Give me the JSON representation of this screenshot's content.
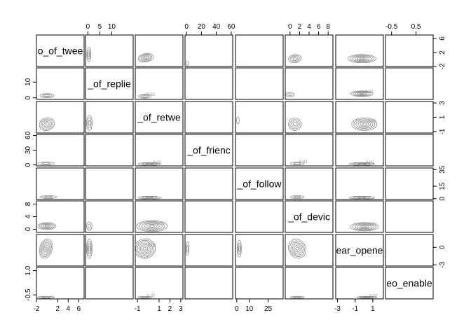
{
  "chart_data": {
    "type": "pairs-contour",
    "variables": [
      "o_of_twee",
      "_of_replie",
      "_of_retwe",
      "_of_frienc",
      "_of_follow",
      "_of_devic",
      "ear_opene",
      "eo_enable"
    ],
    "axes": {
      "bottom": {
        "0": {
          "ticks": [
            -2,
            2,
            4,
            6
          ],
          "labels": [
            "-2",
            "2",
            "4",
            "6"
          ],
          "range": [
            -2,
            7
          ]
        },
        "2": {
          "ticks": [
            -1,
            1,
            2,
            3
          ],
          "labels": [
            "-1",
            "1",
            "2",
            "3"
          ],
          "range": [
            -1.2,
            3.2
          ]
        },
        "4": {
          "ticks": [
            0,
            10,
            25
          ],
          "labels": [
            "0",
            "10",
            "25"
          ],
          "range": [
            -1,
            37
          ]
        },
        "6": {
          "ticks": [
            -3,
            -1,
            1
          ],
          "labels": [
            "-3",
            "-1",
            "1"
          ],
          "range": [
            -3.2,
            2.2
          ]
        }
      },
      "top": {
        "1": {
          "ticks": [
            0,
            5,
            10
          ],
          "labels": [
            "0",
            "5",
            "10"
          ],
          "range": [
            -1,
            19
          ]
        },
        "3": {
          "ticks": [
            0,
            20,
            40,
            60
          ],
          "labels": [
            "0",
            "20",
            "40",
            "60"
          ],
          "range": [
            -2,
            62
          ]
        },
        "5": {
          "ticks": [
            0,
            2,
            4,
            6,
            8
          ],
          "labels": [
            "0",
            "2",
            "4",
            "6",
            "8"
          ],
          "range": [
            -1,
            9
          ]
        },
        "7": {
          "ticks": [
            -0.5,
            0.5
          ],
          "labels": [
            "-0.5",
            "0.5"
          ],
          "range": [
            -0.75,
            1.2
          ]
        }
      },
      "left": {
        "1": {
          "ticks": [
            0,
            10
          ],
          "labels": [
            "0",
            "10"
          ],
          "range": [
            -1,
            19
          ]
        },
        "3": {
          "ticks": [
            0,
            30,
            60
          ],
          "labels": [
            "0",
            "30",
            "60"
          ],
          "range": [
            -2,
            62
          ]
        },
        "5": {
          "ticks": [
            0,
            4,
            8
          ],
          "labels": [
            "0",
            "4",
            "8"
          ],
          "range": [
            -1,
            9
          ]
        },
        "7": {
          "ticks": [
            -0.5,
            1.0
          ],
          "labels": [
            "-0.5",
            "1.0"
          ],
          "range": [
            -0.75,
            1.2
          ]
        }
      },
      "right": {
        "0": {
          "ticks": [
            -2,
            2,
            6
          ],
          "labels": [
            "-2",
            "2",
            "6"
          ],
          "range": [
            -2,
            7
          ]
        },
        "2": {
          "ticks": [
            -1,
            1,
            3
          ],
          "labels": [
            "-1",
            "1",
            "3"
          ],
          "range": [
            -1.2,
            3.2
          ]
        },
        "4": {
          "ticks": [
            0,
            15,
            35
          ],
          "labels": [
            "0",
            "15",
            "35"
          ],
          "range": [
            -1,
            37
          ]
        },
        "6": {
          "ticks": [
            -3,
            0
          ],
          "labels": [
            "-3",
            "0"
          ],
          "range": [
            -3.2,
            2.2
          ]
        }
      }
    },
    "contour_label": "0.02",
    "contour_color": "#8c8c8c",
    "frame_color": "#000000",
    "background": "#ffffff"
  }
}
